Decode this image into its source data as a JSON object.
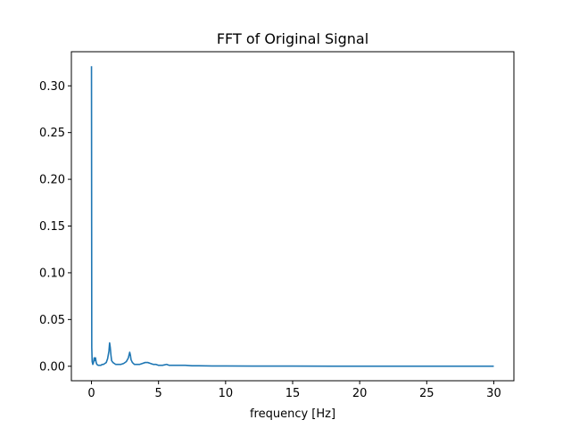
{
  "chart_data": {
    "type": "line",
    "title": "FFT of Original Signal",
    "xlabel": "frequency [Hz]",
    "ylabel": "",
    "xlim": [
      -1.5,
      31.5
    ],
    "ylim": [
      -0.0155,
      0.3365
    ],
    "xticks": [
      0,
      5,
      10,
      15,
      20,
      25,
      30
    ],
    "yticks": [
      0.0,
      0.05,
      0.1,
      0.15,
      0.2,
      0.25,
      0.3
    ],
    "xtick_labels": [
      "0",
      "5",
      "10",
      "15",
      "20",
      "25",
      "30"
    ],
    "ytick_labels": [
      "0.00",
      "0.05",
      "0.10",
      "0.15",
      "0.20",
      "0.25",
      "0.30"
    ],
    "grid": false,
    "legend": "none",
    "series": [
      {
        "color": "#1f77b4",
        "x": [
          0.0,
          0.02,
          0.05,
          0.1,
          0.15,
          0.2,
          0.25,
          0.3,
          0.35,
          0.4,
          0.5,
          0.6,
          0.7,
          0.8,
          0.9,
          1.0,
          1.1,
          1.2,
          1.3,
          1.35,
          1.4,
          1.45,
          1.5,
          1.6,
          1.7,
          1.8,
          2.0,
          2.2,
          2.4,
          2.6,
          2.75,
          2.85,
          2.9,
          2.95,
          3.05,
          3.2,
          3.4,
          3.6,
          3.8,
          4.0,
          4.2,
          4.4,
          4.6,
          4.8,
          5.0,
          5.3,
          5.6,
          5.8,
          6.0,
          6.5,
          7.0,
          7.5,
          8.0,
          9.0,
          10.0,
          12.0,
          15.0,
          18.0,
          20.0,
          25.0,
          30.0
        ],
        "values": [
          0.321,
          0.02,
          0.005,
          0.002,
          0.004,
          0.009,
          0.006,
          0.009,
          0.004,
          0.002,
          0.001,
          0.001,
          0.001,
          0.002,
          0.002,
          0.003,
          0.004,
          0.008,
          0.016,
          0.025,
          0.02,
          0.012,
          0.006,
          0.004,
          0.003,
          0.002,
          0.002,
          0.002,
          0.003,
          0.005,
          0.009,
          0.015,
          0.012,
          0.007,
          0.004,
          0.002,
          0.002,
          0.002,
          0.003,
          0.004,
          0.004,
          0.003,
          0.002,
          0.002,
          0.001,
          0.001,
          0.002,
          0.001,
          0.001,
          0.001,
          0.001,
          0.0005,
          0.0005,
          0.0003,
          0.0003,
          0.0002,
          0.0002,
          0.0001,
          0.0001,
          0.0001,
          0.0001
        ]
      }
    ]
  }
}
